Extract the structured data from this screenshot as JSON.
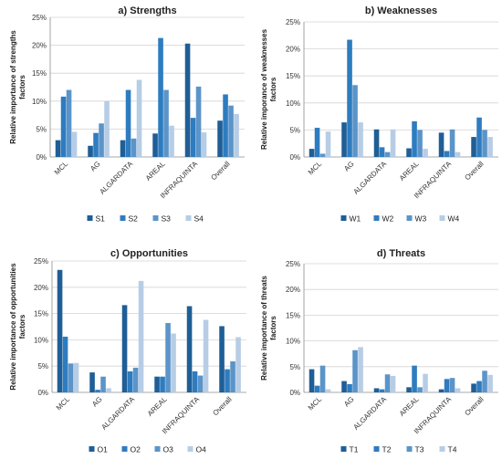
{
  "chart_data": [
    {
      "type": "bar",
      "title": "a) Strengths",
      "ylabel": "Relative importance of strengths factors",
      "ylim": [
        0,
        25
      ],
      "yticks": [
        "0%",
        "5%",
        "10%",
        "15%",
        "20%",
        "25%"
      ],
      "categories": [
        "MCL",
        "AG",
        "ALGARDATA",
        "AREAL",
        "INFRAQUINTA",
        "Overall"
      ],
      "series": [
        {
          "name": "S1",
          "values": [
            3.0,
            2.0,
            3.0,
            4.2,
            20.3,
            6.5
          ]
        },
        {
          "name": "S2",
          "values": [
            10.8,
            4.3,
            12.0,
            21.3,
            7.0,
            11.2
          ]
        },
        {
          "name": "S3",
          "values": [
            12.0,
            6.0,
            3.3,
            12.0,
            12.6,
            9.2
          ]
        },
        {
          "name": "S4",
          "values": [
            4.5,
            10.0,
            13.8,
            5.6,
            4.4,
            7.7
          ]
        }
      ],
      "legend": "bottom",
      "grid": true
    },
    {
      "type": "bar",
      "title": "b) Weaknesses",
      "ylabel": "Relative imporance of weaknesses factors",
      "ylim": [
        0,
        25
      ],
      "yticks": [
        "0%",
        "5%",
        "10%",
        "15%",
        "20%",
        "25%"
      ],
      "categories": [
        "MCL",
        "AG",
        "ALGARDATA",
        "AREAL",
        "INFRAQUINTA",
        "Overall"
      ],
      "series": [
        {
          "name": "W1",
          "values": [
            1.5,
            6.4,
            5.1,
            1.6,
            4.5,
            3.7
          ]
        },
        {
          "name": "W2",
          "values": [
            5.4,
            21.7,
            1.8,
            6.6,
            1.1,
            7.3
          ]
        },
        {
          "name": "W3",
          "values": [
            0.6,
            13.3,
            0.9,
            5.0,
            5.1,
            5.0
          ]
        },
        {
          "name": "W4",
          "values": [
            4.7,
            6.4,
            5.1,
            1.5,
            0.9,
            3.7
          ]
        }
      ],
      "legend": "bottom",
      "grid": true
    },
    {
      "type": "bar",
      "title": "c) Opportunities",
      "ylabel": "Relative importance of opportunities factors",
      "ylim": [
        0,
        25
      ],
      "yticks": [
        "0%",
        "5%",
        "10%",
        "15%",
        "20%",
        "25%"
      ],
      "categories": [
        "MCL",
        "AG",
        "ALGARDATA",
        "AREAL",
        "INFRAQUINTA",
        "Overall"
      ],
      "series": [
        {
          "name": "O1",
          "values": [
            23.3,
            3.8,
            16.6,
            3.0,
            16.4,
            12.6
          ]
        },
        {
          "name": "O2",
          "values": [
            10.6,
            0.5,
            4.0,
            3.0,
            4.0,
            4.4
          ]
        },
        {
          "name": "O3",
          "values": [
            5.5,
            3.0,
            4.7,
            13.2,
            3.2,
            5.9
          ]
        },
        {
          "name": "O4",
          "values": [
            5.6,
            0.8,
            21.2,
            11.2,
            13.8,
            10.5
          ]
        }
      ],
      "legend": "bottom",
      "grid": true
    },
    {
      "type": "bar",
      "title": "d) Threats",
      "ylabel": "Relative importance of threats factors",
      "ylim": [
        0,
        25
      ],
      "yticks": [
        "0%",
        "5%",
        "10%",
        "15%",
        "20%",
        "25%"
      ],
      "categories": [
        "MCL",
        "AG",
        "ALGARDATA",
        "AREAL",
        "INFRAQUINTA",
        "Overall"
      ],
      "series": [
        {
          "name": "T1",
          "values": [
            4.5,
            2.2,
            0.8,
            1.0,
            0.6,
            1.7
          ]
        },
        {
          "name": "T2",
          "values": [
            1.3,
            1.6,
            0.6,
            5.2,
            2.6,
            2.2
          ]
        },
        {
          "name": "T3",
          "values": [
            5.2,
            8.2,
            3.5,
            1.0,
            2.8,
            4.2
          ]
        },
        {
          "name": "T4",
          "values": [
            0.6,
            8.8,
            3.2,
            3.6,
            0.8,
            3.4
          ]
        }
      ],
      "legend": "bottom",
      "grid": true
    }
  ],
  "colors": [
    "#1f5e96",
    "#2e7cc0",
    "#5b94c8",
    "#b7cde6"
  ]
}
